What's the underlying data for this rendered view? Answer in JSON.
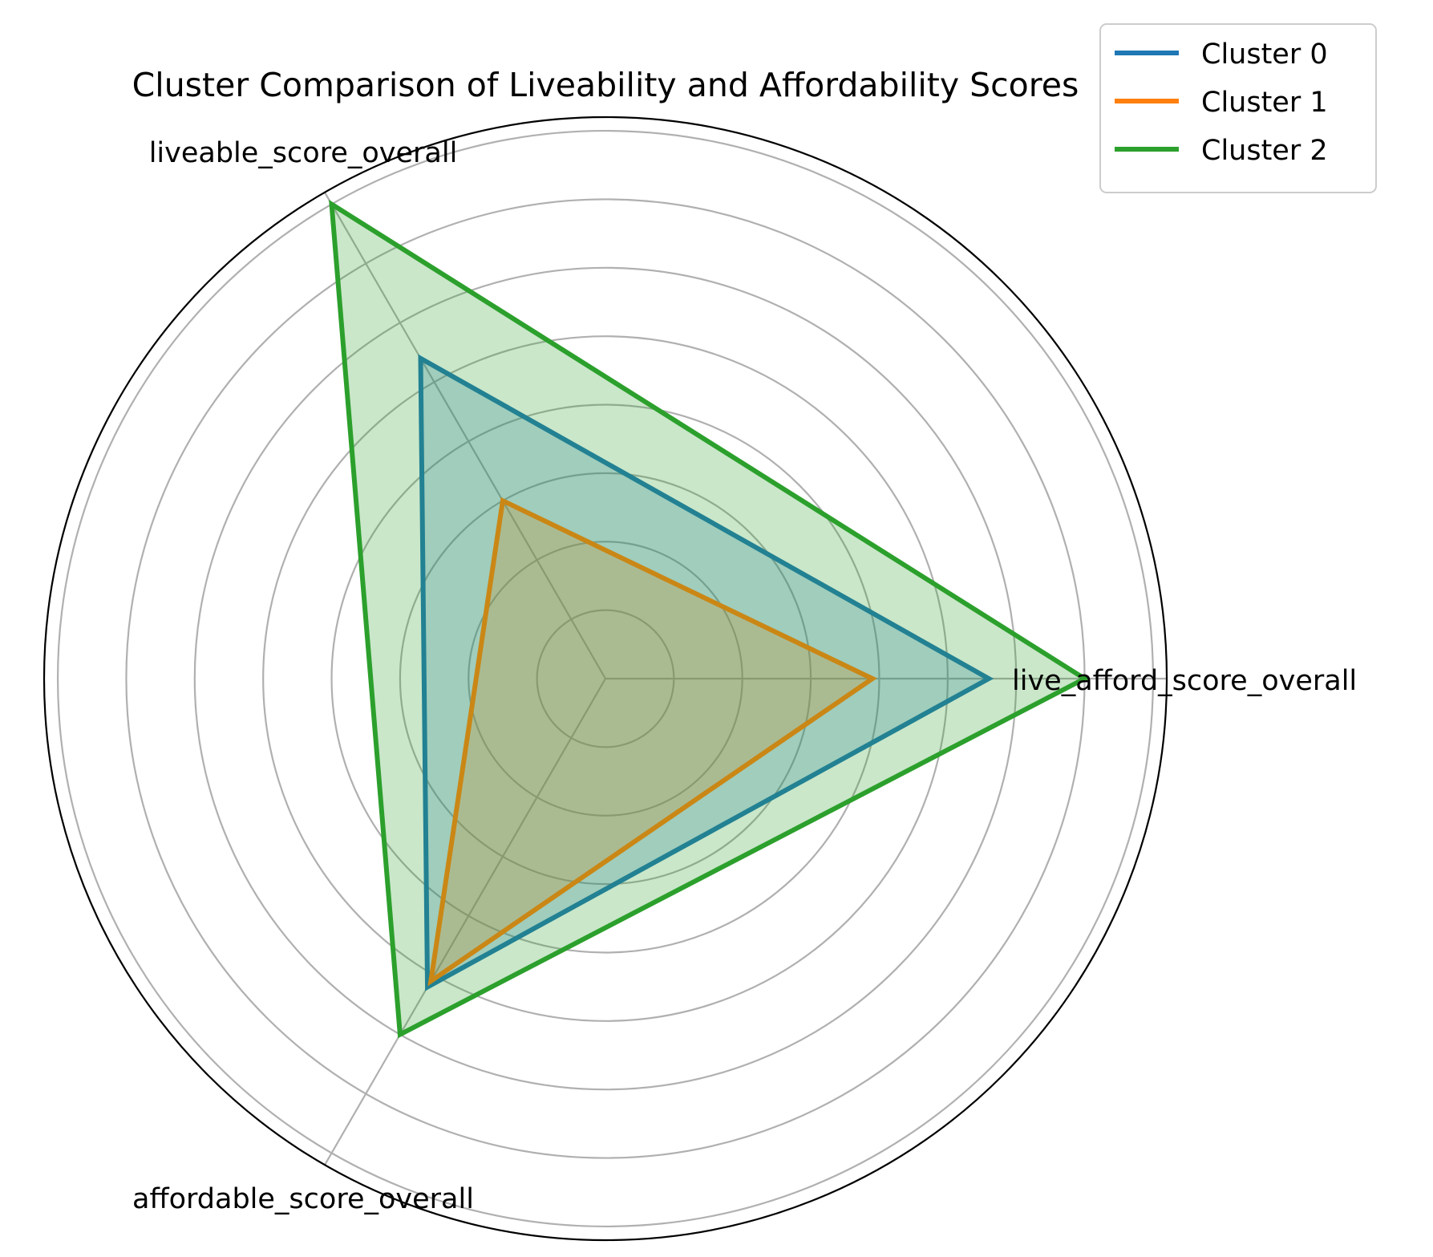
{
  "chart_data": {
    "type": "radar",
    "title": "Cluster Comparison of Liveability and Affordability Scores",
    "axes": [
      "live_afford_score_overall",
      "liveable_score_overall",
      "affordable_score_overall"
    ],
    "r_max": 8.2,
    "gridlines": [
      1,
      2,
      3,
      4,
      5,
      6,
      7,
      8
    ],
    "grid": true,
    "legend_position": "top-right",
    "series": [
      {
        "name": "Cluster 0",
        "color": "#1f77b4",
        "values": [
          5.6,
          5.4,
          5.2
        ]
      },
      {
        "name": "Cluster 1",
        "color": "#ff7f0e",
        "values": [
          3.9,
          3.0,
          5.1
        ]
      },
      {
        "name": "Cluster 2",
        "color": "#2ca02c",
        "values": [
          7.0,
          8.0,
          6.0
        ]
      }
    ]
  }
}
